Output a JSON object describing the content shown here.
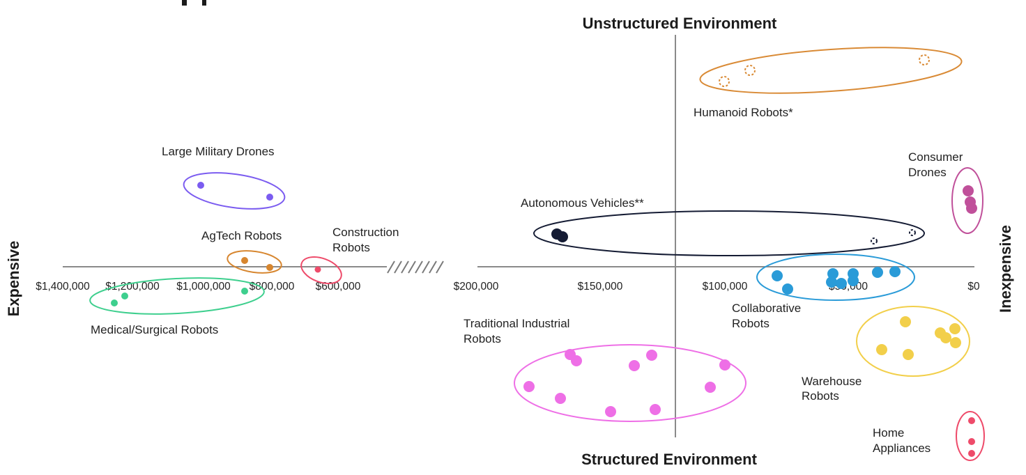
{
  "chart_data": {
    "type": "scatter",
    "title": "",
    "axis_titles": {
      "top": "Unstructured Environment",
      "bottom": "Structured Environment",
      "left": "Expensive",
      "right": "Inexpensive"
    },
    "x_ticks": [
      "$1,400,000",
      "$1,200,000",
      "$1,000,000",
      "$800,000",
      "$600,000",
      "$200,000",
      "$150,000",
      "$100,000",
      "$50,000",
      "$0"
    ],
    "x_scale": "broken, reversed (expensive on left, $0 on right)",
    "y_meaning": "environment structure (up = unstructured, down = structured)",
    "groups": [
      {
        "name": "Humanoid Robots*",
        "color": "#d98a35",
        "marker": "dashed-open",
        "label_lines": [
          "Humanoid Robots*"
        ],
        "points": [
          {
            "price": 95000
          },
          {
            "price": 90000
          },
          {
            "price": 20000
          }
        ]
      },
      {
        "name": "Large Military Drones",
        "color": "#7b5cf0",
        "marker": "small-filled",
        "label_lines": [
          "Large Military Drones"
        ],
        "points": [
          {
            "price": 1080000
          },
          {
            "price": 820000
          }
        ]
      },
      {
        "name": "Consumer Drones",
        "color": "#c0509a",
        "marker": "large-filled",
        "label_lines": [
          "Consumer",
          "Drones"
        ],
        "points": [
          {
            "price": 1000
          },
          {
            "price": 800
          },
          {
            "price": 600
          }
        ]
      },
      {
        "name": "Autonomous Vehicles**",
        "color": "#141b33",
        "marker": "large-filled / dashed-open",
        "label_lines": [
          "Autonomous Vehicles**"
        ],
        "points": [
          {
            "price": 164000
          },
          {
            "price": 162000
          },
          {
            "price": 40000
          },
          {
            "price": 25000
          }
        ]
      },
      {
        "name": "AgTech Robots",
        "color": "#d7862f",
        "marker": "small-filled",
        "label_lines": [
          "AgTech Robots"
        ],
        "points": [
          {
            "price": 850000
          },
          {
            "price": 780000
          }
        ]
      },
      {
        "name": "Construction Robots",
        "color": "#ee4b6a",
        "marker": "small-filled",
        "label_lines": [
          "Construction",
          "Robots"
        ],
        "points": [
          {
            "price": 620000
          }
        ]
      },
      {
        "name": "Medical/Surgical Robots",
        "color": "#3ecf8e",
        "marker": "small-filled",
        "label_lines": [
          "Medical/Surgical Robots"
        ],
        "points": [
          {
            "price": 1200000
          },
          {
            "price": 1170000
          },
          {
            "price": 850000
          }
        ]
      },
      {
        "name": "Collaborative Robots",
        "color": "#2a9bd8",
        "marker": "large-filled",
        "label_lines": [
          "Collaborative",
          "Robots"
        ],
        "points": [
          {
            "price": 70000
          },
          {
            "price": 65000
          },
          {
            "price": 52000
          },
          {
            "price": 52000
          },
          {
            "price": 48000
          },
          {
            "price": 45000
          },
          {
            "price": 40000
          },
          {
            "price": 38000
          },
          {
            "price": 33000
          }
        ]
      },
      {
        "name": "Traditional Industrial Robots",
        "color": "#ee6fe6",
        "marker": "large-filled",
        "label_lines": [
          "Traditional Industrial",
          "Robots"
        ],
        "points": [
          {
            "price": 178000
          },
          {
            "price": 165000
          },
          {
            "price": 162000
          },
          {
            "price": 160000
          },
          {
            "price": 135000
          },
          {
            "price": 132000
          },
          {
            "price": 129000
          },
          {
            "price": 117000
          },
          {
            "price": 100000
          },
          {
            "price": 94000
          }
        ]
      },
      {
        "name": "Warehouse Robots",
        "color": "#f2cf4a",
        "marker": "large-filled",
        "label_lines": [
          "Warehouse",
          "Robots"
        ],
        "points": [
          {
            "price": 32000
          },
          {
            "price": 24000
          },
          {
            "price": 24000
          },
          {
            "price": 12000
          },
          {
            "price": 10000
          },
          {
            "price": 6000
          },
          {
            "price": 6000
          }
        ]
      },
      {
        "name": "Home Appliances",
        "color": "#ee4b6a",
        "marker": "small-filled",
        "label_lines": [
          "Home",
          "Appliances"
        ],
        "points": [
          {
            "price": 500
          },
          {
            "price": 500
          },
          {
            "price": 500
          }
        ]
      }
    ]
  }
}
